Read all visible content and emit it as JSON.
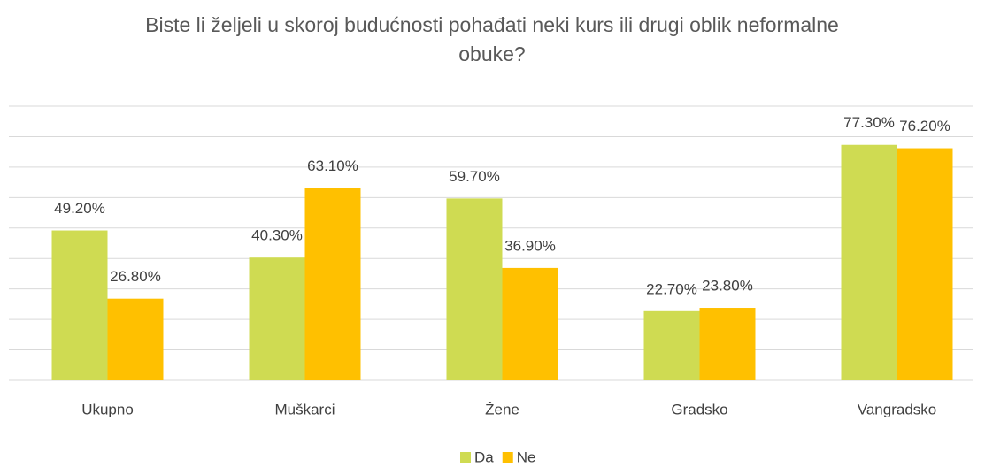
{
  "chart_data": {
    "type": "bar",
    "title": "Biste li željeli u skoroj budućnosti pohađati neki kurs ili drugi oblik neformalne obuke?",
    "categories": [
      "Ukupno",
      "Muškarci",
      "Žene",
      "Gradsko",
      "Vangradsko"
    ],
    "series": [
      {
        "name": "Da",
        "color": "#cfdb52",
        "values": [
          49.2,
          40.3,
          59.7,
          22.7,
          77.3
        ],
        "value_labels": [
          "49.20%",
          "40.30%",
          "59.70%",
          "22.70%",
          "77.30%"
        ]
      },
      {
        "name": "Ne",
        "color": "#ffc000",
        "values": [
          26.8,
          63.1,
          36.9,
          23.8,
          76.2
        ],
        "value_labels": [
          "26.80%",
          "63.10%",
          "36.90%",
          "23.80%",
          "76.20%"
        ]
      }
    ],
    "ylim": [
      0,
      90
    ],
    "yticks": [
      0,
      10,
      20,
      30,
      40,
      50,
      60,
      70,
      80,
      90
    ],
    "grid": true,
    "legend": "bottom"
  }
}
